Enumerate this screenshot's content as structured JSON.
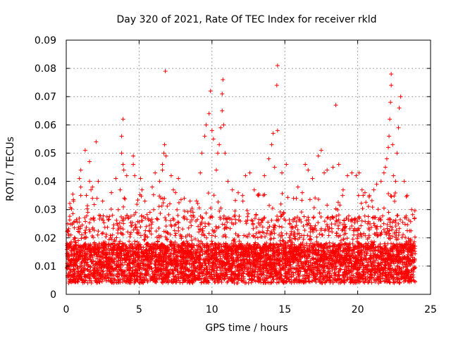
{
  "chart_data": {
    "type": "scatter",
    "title": "Day 320 of 2021, Rate Of TEC Index for receiver rkld",
    "xlabel": "GPS time / hours",
    "ylabel": "ROTI / TECUs",
    "xlim": [
      0,
      25
    ],
    "ylim": [
      0,
      0.09
    ],
    "xticks": [
      "0",
      "5",
      "10",
      "15",
      "20",
      "25"
    ],
    "yticks": [
      "0",
      "0.01",
      "0.02",
      "0.03",
      "0.04",
      "0.05",
      "0.06",
      "0.07",
      "0.08",
      "0.09"
    ],
    "grid": true,
    "marker": "+",
    "color": "#ff0000",
    "series": [
      {
        "points": [
          [
            0.1,
            0.025
          ],
          [
            0.5,
            0.033
          ],
          [
            0.9,
            0.041
          ],
          [
            1.0,
            0.044
          ],
          [
            1.0,
            0.038
          ],
          [
            1.0,
            0.035
          ],
          [
            1.3,
            0.051
          ],
          [
            1.6,
            0.04
          ],
          [
            1.7,
            0.037
          ],
          [
            1.8,
            0.038
          ],
          [
            1.8,
            0.034
          ],
          [
            1.6,
            0.047
          ],
          [
            2.05,
            0.054
          ],
          [
            2.2,
            0.04
          ],
          [
            2.5,
            0.033
          ],
          [
            3.1,
            0.036
          ],
          [
            3.4,
            0.041
          ],
          [
            3.7,
            0.037
          ],
          [
            3.9,
            0.062
          ],
          [
            3.8,
            0.056
          ],
          [
            3.8,
            0.05
          ],
          [
            3.9,
            0.046
          ],
          [
            3.95,
            0.044
          ],
          [
            4.15,
            0.042
          ],
          [
            4.6,
            0.049
          ],
          [
            4.6,
            0.046
          ],
          [
            4.7,
            0.042
          ],
          [
            5.1,
            0.041
          ],
          [
            5.2,
            0.037
          ],
          [
            5.4,
            0.033
          ],
          [
            5.9,
            0.038
          ],
          [
            6.1,
            0.043
          ],
          [
            6.4,
            0.04
          ],
          [
            6.6,
            0.044
          ],
          [
            6.6,
            0.046
          ],
          [
            6.7,
            0.05
          ],
          [
            6.75,
            0.053
          ],
          [
            6.8,
            0.079
          ],
          [
            6.85,
            0.049
          ],
          [
            7.2,
            0.042
          ],
          [
            7.35,
            0.037
          ],
          [
            7.5,
            0.036
          ],
          [
            7.7,
            0.041
          ],
          [
            8.1,
            0.034
          ],
          [
            8.5,
            0.033
          ],
          [
            8.7,
            0.029
          ],
          [
            9.2,
            0.043
          ],
          [
            9.3,
            0.05
          ],
          [
            9.5,
            0.056
          ],
          [
            9.6,
            0.06
          ],
          [
            9.8,
            0.064
          ],
          [
            9.9,
            0.072
          ],
          [
            10.0,
            0.058
          ],
          [
            10.1,
            0.055
          ],
          [
            10.3,
            0.044
          ],
          [
            10.4,
            0.05
          ],
          [
            10.5,
            0.053
          ],
          [
            10.6,
            0.059
          ],
          [
            10.7,
            0.065
          ],
          [
            10.7,
            0.071
          ],
          [
            10.75,
            0.076
          ],
          [
            10.8,
            0.06
          ],
          [
            10.9,
            0.05
          ],
          [
            11.1,
            0.04
          ],
          [
            11.4,
            0.037
          ],
          [
            11.8,
            0.036
          ],
          [
            12.1,
            0.035
          ],
          [
            12.3,
            0.042
          ],
          [
            12.6,
            0.043
          ],
          [
            12.9,
            0.037
          ],
          [
            13.2,
            0.035
          ],
          [
            13.6,
            0.042
          ],
          [
            13.9,
            0.048
          ],
          [
            14.1,
            0.053
          ],
          [
            14.2,
            0.057
          ],
          [
            14.3,
            0.045
          ],
          [
            14.5,
            0.058
          ],
          [
            14.45,
            0.074
          ],
          [
            14.5,
            0.081
          ],
          [
            14.8,
            0.043
          ],
          [
            15.1,
            0.046
          ],
          [
            15.6,
            0.034
          ],
          [
            15.9,
            0.038
          ],
          [
            16.2,
            0.036
          ],
          [
            16.4,
            0.046
          ],
          [
            16.6,
            0.044
          ],
          [
            16.9,
            0.041
          ],
          [
            17.3,
            0.049
          ],
          [
            17.5,
            0.051
          ],
          [
            17.7,
            0.043
          ],
          [
            17.9,
            0.044
          ],
          [
            18.3,
            0.045
          ],
          [
            18.5,
            0.067
          ],
          [
            18.7,
            0.046
          ],
          [
            19.0,
            0.037
          ],
          [
            19.3,
            0.042
          ],
          [
            19.6,
            0.043
          ],
          [
            19.9,
            0.042
          ],
          [
            20.1,
            0.043
          ],
          [
            20.3,
            0.037
          ],
          [
            20.5,
            0.036
          ],
          [
            20.8,
            0.035
          ],
          [
            21.1,
            0.037
          ],
          [
            21.3,
            0.039
          ],
          [
            21.6,
            0.04
          ],
          [
            21.8,
            0.043
          ],
          [
            21.9,
            0.045
          ],
          [
            22.0,
            0.048
          ],
          [
            22.1,
            0.052
          ],
          [
            22.15,
            0.056
          ],
          [
            22.2,
            0.062
          ],
          [
            22.25,
            0.068
          ],
          [
            22.3,
            0.074
          ],
          [
            22.3,
            0.078
          ],
          [
            22.4,
            0.053
          ],
          [
            22.45,
            0.042
          ],
          [
            22.6,
            0.04
          ],
          [
            22.7,
            0.05
          ],
          [
            22.8,
            0.059
          ],
          [
            22.85,
            0.066
          ],
          [
            22.95,
            0.07
          ],
          [
            23.2,
            0.04
          ],
          [
            23.4,
            0.035
          ],
          [
            23.7,
            0.03
          ],
          [
            23.9,
            0.027
          ]
        ]
      }
    ]
  }
}
